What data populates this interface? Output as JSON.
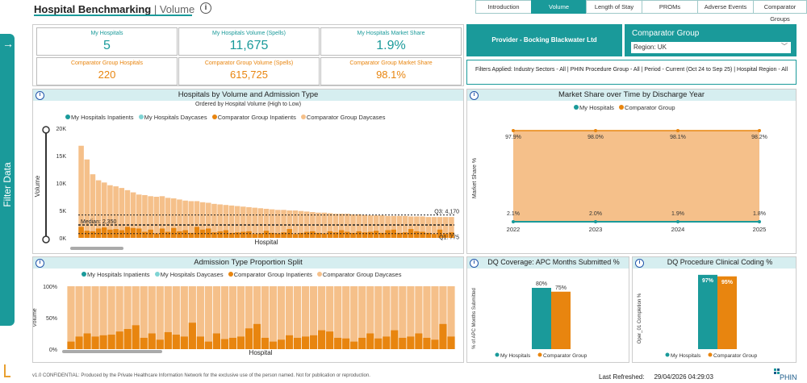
{
  "sidebar": {
    "filter_label": "Filter Data",
    "arrow": "→"
  },
  "header": {
    "title": "Hospital Benchmarking",
    "separator": " | ",
    "subtitle": "Volume",
    "info": "i"
  },
  "tabs": [
    "Introduction",
    "Volume",
    "Length of Stay",
    "PROMs",
    "Adverse Events",
    "Comparator Groups"
  ],
  "active_tab": "Volume",
  "kpis": {
    "my_hospitals_label": "My Hospitals",
    "my_hospitals_value": "5",
    "my_volume_label": "My Hospitals Volume (Spells)",
    "my_volume_value": "11,675",
    "my_share_label": "My Hospitals Market Share",
    "my_share_value": "1.9%",
    "comp_hospitals_label": "Comparator Group Hospitals",
    "comp_hospitals_value": "220",
    "comp_volume_label": "Comparator Group Volume (Spells)",
    "comp_volume_value": "615,725",
    "comp_share_label": "Comparator Group Market Share",
    "comp_share_value": "98.1%"
  },
  "provider": "Provider - Bocking Blackwater Ltd",
  "comparator": {
    "title": "Comparator Group",
    "selected": "Region: UK"
  },
  "filters_applied": "Filters Applied: Industry Sectors - All | PHIN Procedure Group - All | Period - Current (Oct 24 to Sep 25) | Hospital Region - All",
  "colors": {
    "teal": "#1a9a9a",
    "light_teal": "#7fd4d4",
    "orange": "#e8850f",
    "light_orange": "#f5c08a"
  },
  "legend4": [
    "My Hospitals Inpatients",
    "My Hospitals Daycases",
    "Comparator Group Inpatients",
    "Comparator Group Daycases"
  ],
  "legend2": [
    "My Hospitals",
    "Comparator Group"
  ],
  "chart_data": [
    {
      "type": "bar",
      "title": "Hospitals by Volume and Admission Type",
      "subtitle": "Ordered by Hospital Volume (High to Low)",
      "xlabel": "Hospital",
      "ylabel": "Volume",
      "yticks": [
        "20K",
        "15K",
        "10K",
        "5K",
        "0K"
      ],
      "ylim": [
        0,
        20000
      ],
      "series": [
        {
          "name": "Comparator Group Inpatients",
          "values": [
            2000,
            1300,
            1200,
            1700,
            1900,
            1500,
            1600,
            1400,
            2000,
            1800,
            1700,
            1100,
            1500,
            800,
            1700,
            1100,
            1800,
            1200,
            1400,
            900,
            2000,
            1500,
            1700,
            1000,
            1200,
            1400,
            900,
            1000,
            1100,
            1200,
            700,
            800,
            1300,
            900,
            800,
            1000,
            1600,
            700,
            900,
            1100,
            1200,
            900,
            800,
            1200,
            1000,
            1400,
            1100,
            900,
            1200,
            1000,
            1100,
            1300,
            900,
            1400,
            1500,
            900,
            1000,
            1600,
            1200,
            1100,
            900,
            700,
            1500,
            800,
            1000
          ]
        },
        {
          "name": "Comparator Group Daycases",
          "values": [
            14800,
            13000,
            10400,
            8800,
            8200,
            8100,
            7800,
            7700,
            6700,
            6500,
            6200,
            6700,
            6100,
            6700,
            5900,
            6200,
            5400,
            5800,
            5400,
            5800,
            4700,
            5000,
            4700,
            5200,
            4900,
            4600,
            5000,
            4800,
            4600,
            4400,
            4800,
            4600,
            4000,
            4300,
            4300,
            4100,
            3400,
            4300,
            4000,
            3700,
            3500,
            3700,
            3800,
            3300,
            3400,
            3000,
            3300,
            3400,
            3100,
            3200,
            3000,
            2800,
            3200,
            2600,
            2500,
            3100,
            3000,
            2300,
            2700,
            2800,
            2900,
            3100,
            2300,
            3000,
            2800
          ]
        },
        {
          "name": "My Hospitals Inpatients",
          "values": []
        },
        {
          "name": "My Hospitals Daycases",
          "values": []
        }
      ],
      "annotations": [
        "Q3: 4,170",
        "Median: 2,350",
        "Q1: 775"
      ],
      "reference_lines": [
        4170,
        2350,
        775
      ]
    },
    {
      "type": "line",
      "title": "Market Share over Time by Discharge Year",
      "ylabel": "Market Share %",
      "x": [
        "2022",
        "2023",
        "2024",
        "2025"
      ],
      "series": [
        {
          "name": "My Hospitals",
          "values": [
            2.1,
            2.0,
            1.9,
            1.8
          ],
          "labels": [
            "2.1%",
            "2.0%",
            "1.9%",
            "1.8%"
          ]
        },
        {
          "name": "Comparator Group",
          "values": [
            97.9,
            98.0,
            98.1,
            98.2
          ],
          "labels": [
            "97.9%",
            "98.0%",
            "98.1%",
            "98.2%"
          ]
        }
      ]
    },
    {
      "type": "bar",
      "title": "Admission Type Proportion Split",
      "xlabel": "Hospital",
      "ylabel": "Volume",
      "yticks": [
        "100%",
        "50%",
        "0%"
      ],
      "series": [
        {
          "name": "Comparator Group Inpatients",
          "values": [
            12,
            20,
            25,
            20,
            22,
            23,
            28,
            32,
            38,
            18,
            25,
            15,
            27,
            23,
            20,
            42,
            20,
            12,
            25,
            16,
            18,
            20,
            33,
            40,
            18,
            12,
            15,
            22,
            18,
            20,
            22,
            30,
            28,
            18,
            17,
            12,
            18,
            25,
            17,
            20,
            30,
            18,
            20,
            25,
            18,
            15,
            40,
            20
          ]
        },
        {
          "name": "Comparator Group Daycases",
          "values": [
            88,
            80,
            75,
            80,
            78,
            77,
            72,
            68,
            62,
            82,
            75,
            85,
            73,
            77,
            80,
            58,
            80,
            88,
            75,
            84,
            82,
            80,
            67,
            60,
            82,
            88,
            85,
            78,
            82,
            80,
            78,
            70,
            72,
            82,
            83,
            88,
            82,
            75,
            83,
            80,
            70,
            82,
            80,
            75,
            82,
            85,
            60,
            80
          ]
        }
      ]
    },
    {
      "type": "bar",
      "title": "DQ Coverage: APC Months Submitted %",
      "ylabel": "% of APC Months Submitted",
      "categories": [
        "My Hospitals",
        "Comparator Group"
      ],
      "values": [
        80,
        75
      ],
      "labels": [
        "80%",
        "75%"
      ]
    },
    {
      "type": "bar",
      "title": "DQ Procedure Clinical Coding %",
      "ylabel": "Oper_01 Completion %",
      "categories": [
        "My Hospitals",
        "Comparator Group"
      ],
      "values": [
        97,
        95
      ],
      "labels": [
        "97%",
        "95%"
      ]
    }
  ],
  "footer": {
    "text": "v1.0 CONFIDENTIAL: Produced by the Private Healthcare Information Network for the exclusive use of the person named. Not for publication or reproduction.",
    "refreshed_label": "Last Refreshed:",
    "refreshed_value": "29/04/2026 04:29:03",
    "logo": "PHIN"
  }
}
